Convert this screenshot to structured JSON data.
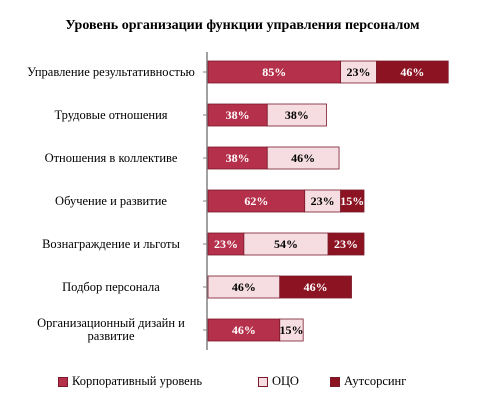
{
  "chart_data": {
    "type": "bar",
    "stacked": true,
    "orientation": "horizontal",
    "title": "Уровень организации функции управления персоналом",
    "categories": [
      "Управление результативностью",
      "Трудовые отношения",
      "Отношения в коллективе",
      "Обучение и развитие",
      "Вознаграждение и льготы",
      "Подбор персонала",
      "Организационный дизайн и развитие"
    ],
    "series": [
      {
        "name": "Корпоративный уровень",
        "color": "#b5304a",
        "label_color": "#ffffff",
        "values": [
          85,
          38,
          38,
          62,
          23,
          null,
          46
        ]
      },
      {
        "name": "ОЦО",
        "color": "#f5dde2",
        "label_color": "#000000",
        "values": [
          23,
          38,
          46,
          23,
          54,
          46,
          15
        ]
      },
      {
        "name": "Аутсорсинг",
        "color": "#8c1422",
        "label_color": "#ffffff",
        "values": [
          46,
          null,
          null,
          15,
          23,
          46,
          null
        ]
      }
    ],
    "value_suffix": "%",
    "legend_position": "bottom",
    "grid": false
  }
}
